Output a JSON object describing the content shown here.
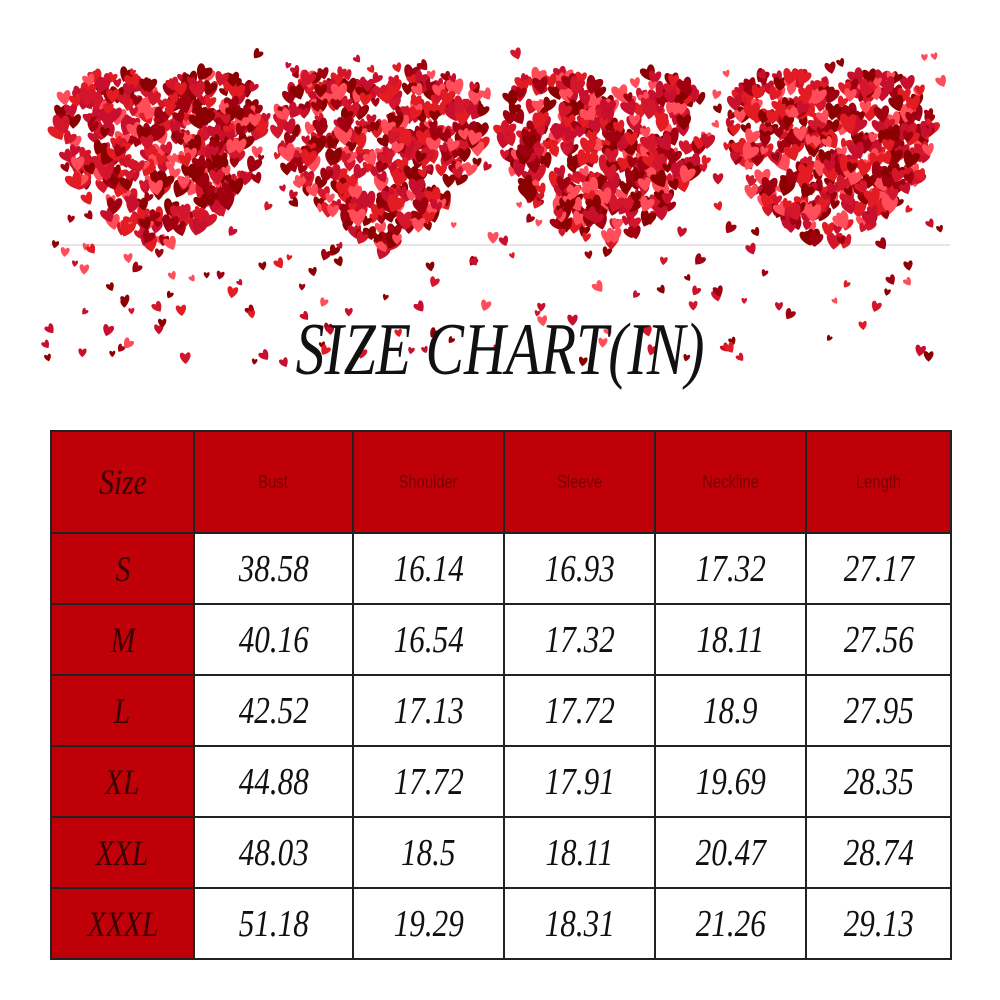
{
  "header": {
    "title": "SIZE CHART(IN)"
  },
  "table": {
    "columns": [
      "Size",
      "Bust",
      "Shoulder",
      "Sleeve",
      "Neckline",
      "Length"
    ],
    "rows": [
      [
        "S",
        38.58,
        16.14,
        16.93,
        17.32,
        27.17
      ],
      [
        "M",
        40.16,
        16.54,
        17.32,
        18.11,
        27.56
      ],
      [
        "L",
        42.52,
        17.13,
        17.72,
        18.9,
        27.95
      ],
      [
        "XL",
        44.88,
        17.72,
        17.91,
        19.69,
        28.35
      ],
      [
        "XXL",
        48.03,
        18.5,
        18.11,
        20.47,
        28.74
      ],
      [
        "XXXL",
        51.18,
        19.29,
        18.31,
        21.26,
        29.13
      ]
    ]
  }
}
